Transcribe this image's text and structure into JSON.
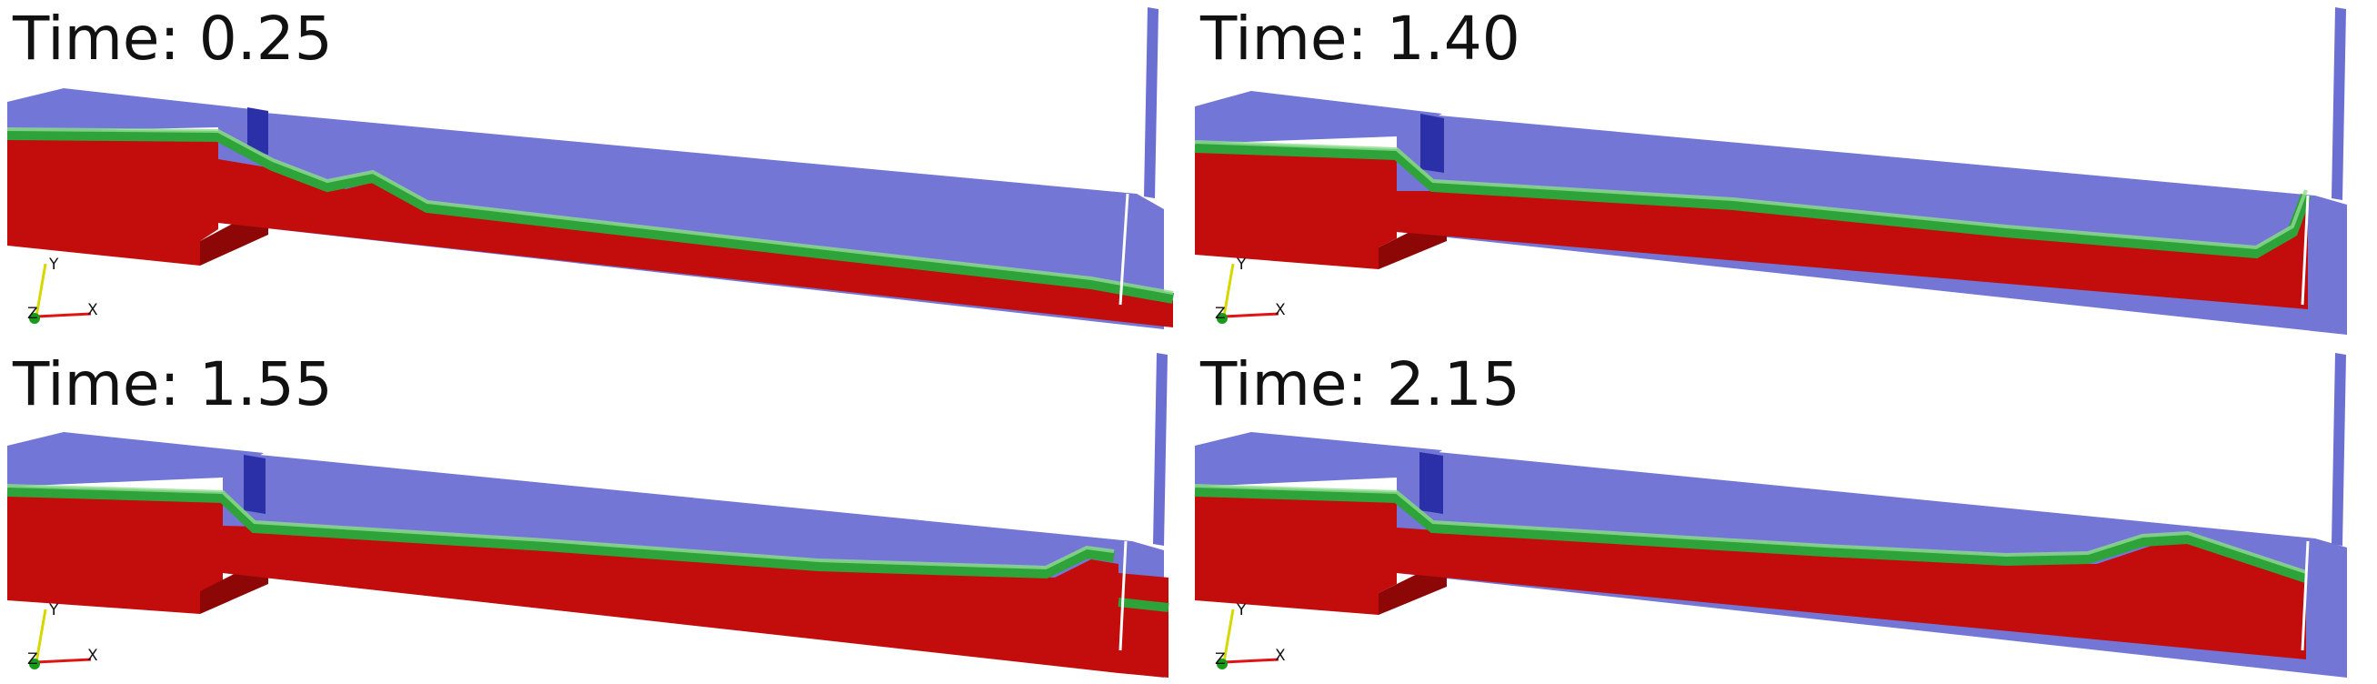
{
  "colors": {
    "water": "#6b6fd2",
    "water_dark": "#4d51c4",
    "sediment": "#c30c0c",
    "sediment_dark": "#8e0707",
    "interface_green": "#2ea33a",
    "interface_light": "#7bd37b",
    "gate": "#2b2fa8",
    "axis_x": "#e01414",
    "axis_y": "#d7d700",
    "axis_z": "#1a9a1a"
  },
  "icons": [
    "axis-triad-icon"
  ],
  "axis": {
    "x": "X",
    "y": "Y",
    "z": "Z"
  },
  "panels": [
    {
      "label": "Time: 0.25",
      "time": 0.25
    },
    {
      "label": "Time: 1.40",
      "time": 1.4
    },
    {
      "label": "Time: 1.55",
      "time": 1.55
    },
    {
      "label": "Time: 2.15",
      "time": 2.15
    }
  ]
}
